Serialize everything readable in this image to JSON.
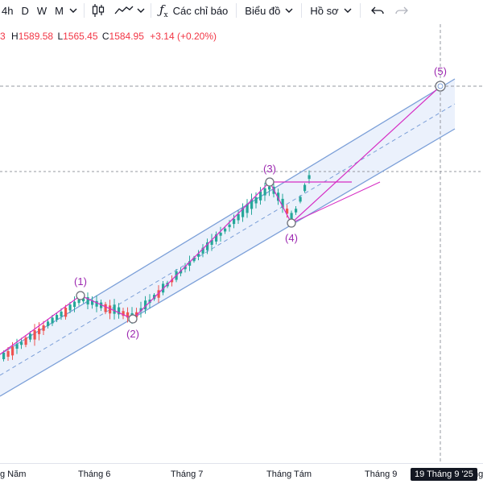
{
  "toolbar": {
    "timeframes": [
      "4h",
      "D",
      "W",
      "M"
    ],
    "indicators_label": "Các chỉ báo",
    "chart_menu_label": "Biểu đồ",
    "profile_menu_label": "Hồ sơ",
    "icons": [
      "chevron-down-icon",
      "candlestick-icon",
      "line-type-icon",
      "fx-icon",
      "undo-icon",
      "redo-icon"
    ]
  },
  "ohlc": {
    "partial_prefix": "3",
    "h_label": "H",
    "h_value": "1589.58",
    "l_label": "L",
    "l_value": "1565.45",
    "c_label": "C",
    "c_value": "1584.95",
    "change": "+3.14 (+0.20%)"
  },
  "wave_labels": {
    "w1": "(1)",
    "w2": "(2)",
    "w3": "(3)",
    "w4": "(4)",
    "w5": "(5)"
  },
  "xaxis": {
    "labels": [
      "g Năm",
      "Tháng 6",
      "Tháng 7",
      "Tháng Tám",
      "Tháng 9",
      "ng"
    ],
    "cursor_date": "19 Tháng 9 '25"
  },
  "colors": {
    "up": "#26a69a",
    "down": "#ef5350",
    "wave": "#d62dc4",
    "channel_line": "#7b9fd8",
    "channel_fill": "#e8eefc",
    "text": "#131722"
  }
}
